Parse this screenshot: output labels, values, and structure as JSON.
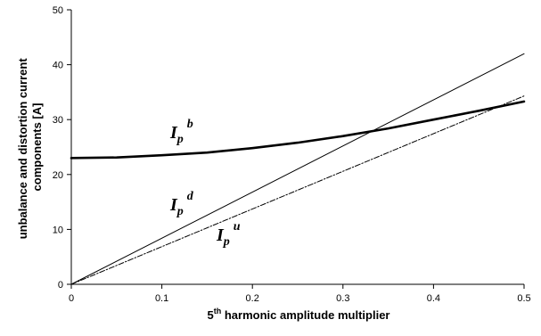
{
  "chart_data": {
    "type": "line",
    "xlabel": {
      "base": "5",
      "sup": "th",
      "rest": " harmonic amplitude multiplier"
    },
    "ylabel": [
      "unbalance and distortion current",
      "components [A]"
    ],
    "xlim": [
      0,
      0.5
    ],
    "ylim": [
      0,
      50
    ],
    "x_ticks": [
      "0",
      "0.1",
      "0.2",
      "0.3",
      "0.4",
      "0.5"
    ],
    "y_ticks": [
      "0",
      "10",
      "20",
      "30",
      "40",
      "50"
    ],
    "grid": false,
    "legend": "none",
    "series": [
      {
        "label": {
          "main": "I",
          "sub": "p",
          "sup": "b"
        },
        "style": "thick",
        "x": [
          0,
          0.05,
          0.1,
          0.15,
          0.2,
          0.25,
          0.3,
          0.35,
          0.4,
          0.45,
          0.5
        ],
        "y": [
          23.0,
          23.1,
          23.5,
          24.0,
          24.8,
          25.8,
          27.0,
          28.4,
          30.0,
          31.6,
          33.3
        ]
      },
      {
        "label": {
          "main": "I",
          "sub": "p",
          "sup": "d"
        },
        "style": "thin",
        "x": [
          0,
          0.5
        ],
        "y": [
          0,
          42.0
        ]
      },
      {
        "label": {
          "main": "I",
          "sub": "p",
          "sup": "u"
        },
        "style": "dashdot",
        "x": [
          0,
          0.5
        ],
        "y": [
          0,
          34.3
        ]
      }
    ]
  }
}
